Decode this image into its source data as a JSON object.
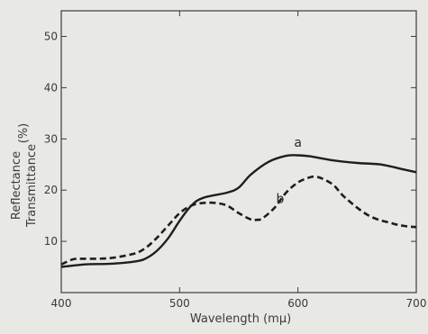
{
  "chart_data": {
    "type": "line",
    "xlabel": "Wavelength (mμ)",
    "ylabel": "Reflectance Transmittance (%)",
    "ylabel_lines": [
      "Reflectance",
      "Transmittance"
    ],
    "ylabel_unit": "(%)",
    "xlim": [
      400,
      700
    ],
    "ylim": [
      0,
      55
    ],
    "x_ticks": [
      400,
      500,
      600,
      700
    ],
    "y_ticks": [
      10,
      20,
      30,
      40,
      50
    ],
    "grid": false,
    "series": [
      {
        "name": "a",
        "style": "solid",
        "x": [
          400,
          420,
          440,
          460,
          470,
          480,
          490,
          500,
          510,
          520,
          540,
          550,
          560,
          575,
          590,
          600,
          610,
          630,
          650,
          670,
          690,
          700
        ],
        "y": [
          5,
          5.5,
          5.6,
          6,
          6.5,
          8,
          10.5,
          14,
          17,
          18.5,
          19.5,
          20.5,
          23,
          25.5,
          26.7,
          26.8,
          26.6,
          25.8,
          25.3,
          25.0,
          24.0,
          23.5
        ]
      },
      {
        "name": "b",
        "style": "dashed",
        "x": [
          400,
          410,
          420,
          440,
          460,
          470,
          480,
          490,
          500,
          510,
          520,
          530,
          540,
          550,
          560,
          565,
          570,
          580,
          590,
          600,
          610,
          615,
          620,
          630,
          640,
          660,
          680,
          690,
          700
        ],
        "y": [
          5.5,
          6.5,
          6.6,
          6.7,
          7.5,
          8.5,
          10.5,
          13,
          15.5,
          17,
          17.5,
          17.5,
          17,
          15.5,
          14.3,
          14.2,
          14.5,
          16.5,
          19.5,
          21.5,
          22.5,
          22.6,
          22.3,
          21,
          18.5,
          15,
          13.5,
          13.0,
          12.8
        ]
      }
    ]
  }
}
